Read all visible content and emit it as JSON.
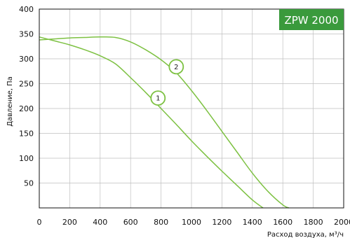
{
  "chart_data": {
    "type": "line",
    "badge": "ZPW 2000",
    "xlabel": "Расход воздуха, м³/ч",
    "ylabel": "Давление, Па",
    "xlim": [
      0,
      2000
    ],
    "ylim": [
      0,
      400
    ],
    "xticks": [
      0,
      200,
      400,
      600,
      800,
      1000,
      1200,
      1400,
      1600,
      1800,
      2000
    ],
    "yticks": [
      50,
      100,
      150,
      200,
      250,
      300,
      350,
      400
    ],
    "grid": true,
    "series": [
      {
        "name": "1",
        "x": [
          0,
          100,
          200,
          300,
          400,
          500,
          600,
          700,
          800,
          900,
          1000,
          1100,
          1200,
          1300,
          1400,
          1470
        ],
        "y": [
          344,
          336,
          328,
          318,
          306,
          290,
          262,
          232,
          200,
          168,
          135,
          104,
          74,
          45,
          16,
          0
        ]
      },
      {
        "name": "2",
        "x": [
          0,
          100,
          200,
          300,
          400,
          500,
          600,
          700,
          800,
          900,
          1000,
          1100,
          1200,
          1300,
          1400,
          1500,
          1600,
          1640
        ],
        "y": [
          338,
          340,
          342,
          343,
          344,
          343,
          334,
          318,
          298,
          272,
          236,
          196,
          154,
          112,
          70,
          34,
          6,
          0
        ]
      }
    ],
    "labels": [
      {
        "text": "1",
        "x": 780,
        "y": 221
      },
      {
        "text": "2",
        "x": 900,
        "y": 284
      }
    ],
    "colors": {
      "line": "#7dc142",
      "badge": "#3a9a3c",
      "grid": "#bfbfbf",
      "axis": "#111111"
    }
  }
}
